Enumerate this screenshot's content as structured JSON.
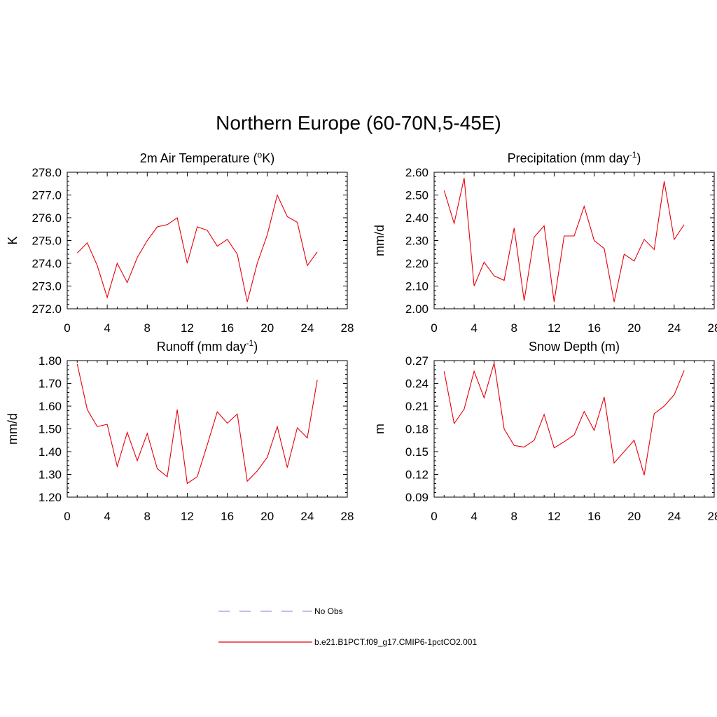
{
  "main_title": "Northern Europe (60-70N,5-45E)",
  "legend": [
    {
      "label": "No Obs",
      "color": "#9999ee",
      "dash": true
    },
    {
      "label": "b.e21.B1PCT.f09_g17.CMIP6-1pctCO2.001",
      "color": "#e8000b",
      "dash": false
    }
  ],
  "chart_data": [
    {
      "type": "line",
      "title": "2m Air Temperature (",
      "title_sup": "o",
      "title_end": "K)",
      "ylabel": "K",
      "xlim": [
        0,
        28
      ],
      "ylim": [
        272.0,
        278.0
      ],
      "xticks": [
        0,
        4,
        8,
        12,
        16,
        20,
        24,
        28
      ],
      "yticks": [
        272.0,
        273.0,
        274.0,
        275.0,
        276.0,
        277.0,
        278.0
      ],
      "ytick_labels": [
        "272.0",
        "273.0",
        "274.0",
        "275.0",
        "276.0",
        "277.0",
        "278.0"
      ],
      "x": [
        1,
        2,
        3,
        4,
        5,
        6,
        7,
        8,
        9,
        10,
        11,
        12,
        13,
        14,
        15,
        16,
        17,
        18,
        19,
        20,
        21,
        22,
        23,
        24,
        25
      ],
      "series": [
        {
          "color": "#e8000b",
          "values": [
            274.45,
            274.9,
            273.9,
            272.5,
            274.0,
            273.15,
            274.25,
            275.0,
            275.6,
            275.7,
            276.0,
            274.0,
            275.6,
            275.45,
            274.75,
            275.05,
            274.4,
            272.3,
            274.0,
            275.25,
            277.0,
            276.05,
            275.8,
            273.9,
            274.5
          ]
        }
      ]
    },
    {
      "type": "line",
      "title": "Precipitation (mm day",
      "title_sup": "-1",
      "title_end": ")",
      "ylabel": "mm/d",
      "xlim": [
        0,
        28
      ],
      "ylim": [
        2.0,
        2.6
      ],
      "xticks": [
        0,
        4,
        8,
        12,
        16,
        20,
        24,
        28
      ],
      "yticks": [
        2.0,
        2.1,
        2.2,
        2.3,
        2.4,
        2.5,
        2.6
      ],
      "ytick_labels": [
        "2.00",
        "2.10",
        "2.20",
        "2.30",
        "2.40",
        "2.50",
        "2.60"
      ],
      "x": [
        1,
        2,
        3,
        4,
        5,
        6,
        7,
        8,
        9,
        10,
        11,
        12,
        13,
        14,
        15,
        16,
        17,
        18,
        19,
        20,
        21,
        22,
        23,
        24,
        25
      ],
      "series": [
        {
          "color": "#e8000b",
          "values": [
            2.52,
            2.375,
            2.575,
            2.1,
            2.205,
            2.145,
            2.125,
            2.355,
            2.035,
            2.315,
            2.365,
            2.03,
            2.32,
            2.32,
            2.45,
            2.3,
            2.265,
            2.03,
            2.24,
            2.21,
            2.305,
            2.26,
            2.56,
            2.305,
            2.37
          ]
        }
      ]
    },
    {
      "type": "line",
      "title": "Runoff (mm day",
      "title_sup": "-1",
      "title_end": ")",
      "ylabel": "mm/d",
      "xlim": [
        0,
        28
      ],
      "ylim": [
        1.2,
        1.8
      ],
      "xticks": [
        0,
        4,
        8,
        12,
        16,
        20,
        24,
        28
      ],
      "yticks": [
        1.2,
        1.3,
        1.4,
        1.5,
        1.6,
        1.7,
        1.8
      ],
      "ytick_labels": [
        "1.20",
        "1.30",
        "1.40",
        "1.50",
        "1.60",
        "1.70",
        "1.80"
      ],
      "x": [
        1,
        2,
        3,
        4,
        5,
        6,
        7,
        8,
        9,
        10,
        11,
        12,
        13,
        14,
        15,
        16,
        17,
        18,
        19,
        20,
        21,
        22,
        23,
        24,
        25
      ],
      "series": [
        {
          "color": "#e8000b",
          "values": [
            1.785,
            1.585,
            1.51,
            1.52,
            1.335,
            1.485,
            1.36,
            1.48,
            1.325,
            1.29,
            1.585,
            1.26,
            1.29,
            1.43,
            1.575,
            1.525,
            1.565,
            1.27,
            1.315,
            1.375,
            1.51,
            1.33,
            1.505,
            1.46,
            1.715
          ]
        }
      ]
    },
    {
      "type": "line",
      "title": "Snow Depth (m)",
      "title_sup": "",
      "title_end": "",
      "ylabel": "m",
      "xlim": [
        0,
        28
      ],
      "ylim": [
        0.09,
        0.27
      ],
      "xticks": [
        0,
        4,
        8,
        12,
        16,
        20,
        24,
        28
      ],
      "yticks": [
        0.09,
        0.12,
        0.15,
        0.18,
        0.21,
        0.24,
        0.27
      ],
      "ytick_labels": [
        "0.09",
        "0.12",
        "0.15",
        "0.18",
        "0.21",
        "0.24",
        "0.27"
      ],
      "x": [
        1,
        2,
        3,
        4,
        5,
        6,
        7,
        8,
        9,
        10,
        11,
        12,
        13,
        14,
        15,
        16,
        17,
        18,
        19,
        20,
        21,
        22,
        23,
        24,
        25
      ],
      "series": [
        {
          "color": "#e8000b",
          "values": [
            0.256,
            0.187,
            0.206,
            0.256,
            0.221,
            0.267,
            0.18,
            0.158,
            0.156,
            0.165,
            0.199,
            0.155,
            0.163,
            0.172,
            0.203,
            0.178,
            0.222,
            0.135,
            0.15,
            0.165,
            0.119,
            0.2,
            0.21,
            0.225,
            0.257
          ]
        }
      ]
    }
  ]
}
